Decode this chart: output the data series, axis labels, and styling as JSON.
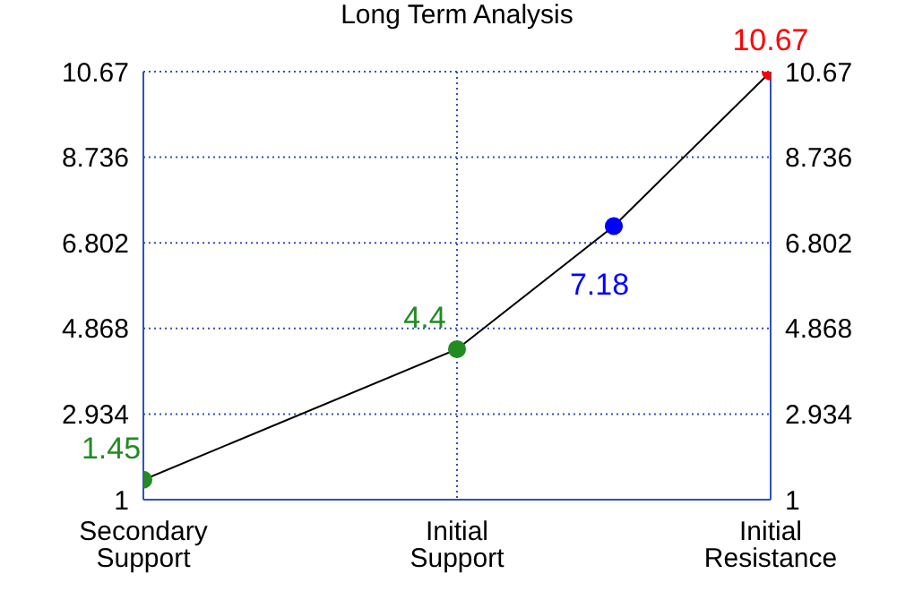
{
  "chart_data": {
    "type": "line",
    "title": "Long Term Analysis",
    "categories": [
      "Secondary Support",
      null,
      "Initial Support",
      null,
      "Initial Resistance"
    ],
    "series": [
      {
        "color": "#000000",
        "values": [
          1.45,
          null,
          4.4,
          7.18,
          10.67
        ],
        "colors": [
          "#228b22",
          null,
          "#228b22",
          "#0000ff",
          "#ff0000"
        ]
      }
    ],
    "ylim": [
      1,
      10.67
    ],
    "yticks": [
      1,
      2.934,
      4.868,
      6.802,
      8.736,
      10.67
    ],
    "y2lim": [
      1,
      10.67
    ],
    "y2ticks": [
      1,
      2.934,
      4.868,
      6.802,
      8.736,
      10.67
    ],
    "data_labels": true,
    "grid": true,
    "marker": "circle",
    "line_style": "solid",
    "legend": false
  }
}
